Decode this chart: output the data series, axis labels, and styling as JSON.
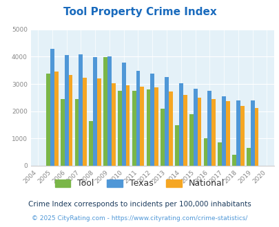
{
  "title": "Tool Property Crime Index",
  "years": [
    2004,
    2005,
    2006,
    2007,
    2008,
    2009,
    2010,
    2011,
    2012,
    2013,
    2014,
    2015,
    2016,
    2017,
    2018,
    2019,
    2020
  ],
  "tool": [
    null,
    3380,
    2440,
    2440,
    1650,
    3990,
    2750,
    2760,
    2800,
    2100,
    1490,
    1890,
    1010,
    860,
    400,
    650,
    null
  ],
  "texas": [
    null,
    4300,
    4060,
    4100,
    3990,
    4010,
    3790,
    3470,
    3380,
    3250,
    3040,
    2830,
    2760,
    2560,
    2390,
    2390,
    null
  ],
  "national": [
    null,
    3450,
    3340,
    3240,
    3200,
    3040,
    2940,
    2900,
    2880,
    2720,
    2600,
    2490,
    2450,
    2360,
    2190,
    2130,
    null
  ],
  "tool_color": "#7ab648",
  "texas_color": "#4f97d7",
  "national_color": "#f5a623",
  "bg_color": "#e4f1f8",
  "ylim": [
    0,
    5000
  ],
  "yticks": [
    0,
    1000,
    2000,
    3000,
    4000,
    5000
  ],
  "subtitle": "Crime Index corresponds to incidents per 100,000 inhabitants",
  "footer": "© 2025 CityRating.com - https://www.cityrating.com/crime-statistics/",
  "title_color": "#1a6bbd",
  "subtitle_color": "#1a3a5c",
  "footer_color": "#4f97d7",
  "legend_labels": [
    "Tool",
    "Texas",
    "National"
  ],
  "legend_label_color": "#333333"
}
